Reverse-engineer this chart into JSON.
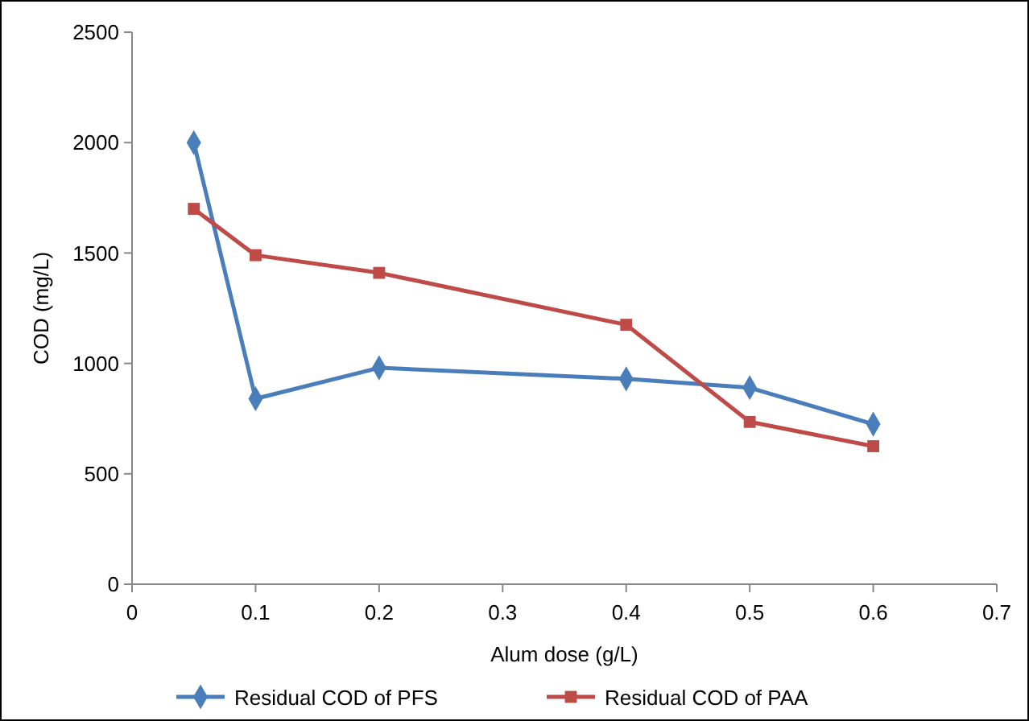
{
  "chart_data": {
    "type": "line",
    "xlabel": "Alum dose (g/L)",
    "ylabel": "COD (mg/L)",
    "x": [
      0.05,
      0.1,
      0.2,
      0.4,
      0.5,
      0.6
    ],
    "xlim": [
      0,
      0.7
    ],
    "xticks": [
      0,
      0.1,
      0.2,
      0.3,
      0.4,
      0.5,
      0.6,
      0.7
    ],
    "ylim": [
      0,
      2500
    ],
    "yticks": [
      0,
      500,
      1000,
      1500,
      2000,
      2500
    ],
    "grid": false,
    "legend": "bottom",
    "line_style": "solid",
    "series": [
      {
        "name": "Residual COD of PFS",
        "color": "#4a7ebb",
        "marker": "diamond",
        "values": [
          2000,
          840,
          980,
          930,
          890,
          725
        ]
      },
      {
        "name": "Residual COD of PAA",
        "color": "#be4b48",
        "marker": "square",
        "values": [
          1700,
          1490,
          1410,
          1175,
          735,
          625
        ]
      }
    ]
  }
}
